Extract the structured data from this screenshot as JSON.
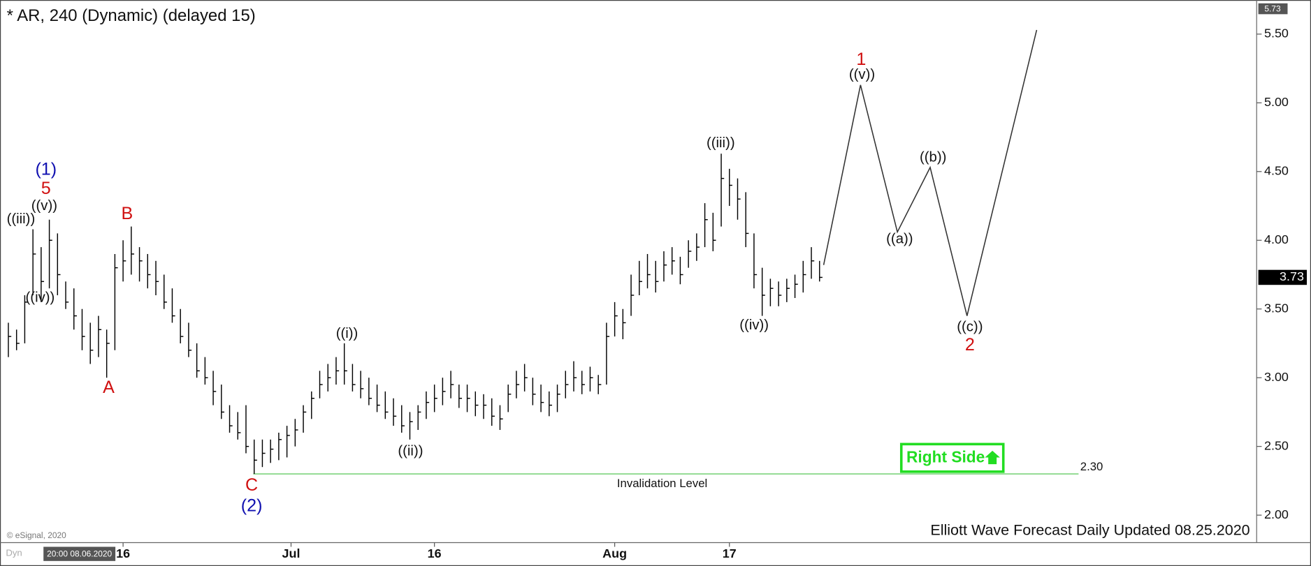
{
  "chart_data": {
    "type": "hlc",
    "title": "* AR, 240 (Dynamic) (delayed 15)",
    "copyright": "© eSignal, 2020",
    "mode_label": "Dyn",
    "cursor_date": "20:00 08.06.2020",
    "footer": "Elliott Wave Forecast Daily Updated 08.25.2020",
    "badge": "Right Side",
    "bar_color": "#000000",
    "ylim": [
      1.8,
      5.73
    ],
    "yticks": [
      {
        "value": 2,
        "label": "2.00"
      },
      {
        "value": 2.5,
        "label": "2.50"
      },
      {
        "value": 3,
        "label": "3.00"
      },
      {
        "value": 3.5,
        "label": "3.50"
      },
      {
        "value": 4,
        "label": "4.00"
      },
      {
        "value": 4.5,
        "label": "4.50"
      },
      {
        "value": 5,
        "label": "5.00"
      },
      {
        "value": 5.5,
        "label": "5.50"
      }
    ],
    "xticks": [
      {
        "value": 14,
        "label": "16"
      },
      {
        "value": 34.5,
        "label": "Jul"
      },
      {
        "value": 52,
        "label": "16"
      },
      {
        "value": 74,
        "label": "Aug"
      },
      {
        "value": 88,
        "label": "17"
      }
    ],
    "high": [
      3.4,
      3.35,
      3.6,
      4.08,
      3.95,
      4.15,
      4.05,
      3.7,
      3.65,
      3.5,
      3.4,
      3.45,
      3.35,
      3.9,
      4.0,
      4.1,
      3.95,
      3.9,
      3.85,
      3.75,
      3.65,
      3.5,
      3.4,
      3.25,
      3.15,
      3.05,
      2.95,
      2.8,
      2.75,
      2.8,
      2.55,
      2.55,
      2.55,
      2.6,
      2.65,
      2.7,
      2.8,
      2.9,
      3.05,
      3.1,
      3.15,
      3.25,
      3.1,
      3.05,
      3.0,
      2.95,
      2.9,
      2.85,
      2.8,
      2.75,
      2.8,
      2.9,
      2.95,
      3.0,
      3.05,
      2.95,
      2.95,
      2.9,
      2.88,
      2.85,
      2.8,
      2.95,
      3.05,
      3.1,
      3.0,
      2.95,
      2.9,
      2.95,
      3.05,
      3.12,
      3.05,
      3.08,
      3.02,
      3.4,
      3.55,
      3.5,
      3.75,
      3.85,
      3.9,
      3.85,
      3.92,
      3.95,
      3.88,
      4.0,
      4.05,
      4.27,
      4.2,
      4.63,
      4.52,
      4.45,
      4.35,
      4.05,
      3.8,
      3.72,
      3.7,
      3.72,
      3.75,
      3.85,
      3.95,
      3.85
    ],
    "low": [
      3.15,
      3.2,
      3.25,
      3.6,
      3.55,
      3.65,
      3.6,
      3.5,
      3.35,
      3.2,
      3.1,
      3.15,
      3.0,
      3.2,
      3.7,
      3.75,
      3.7,
      3.65,
      3.6,
      3.5,
      3.4,
      3.25,
      3.15,
      3.0,
      2.95,
      2.8,
      2.7,
      2.6,
      2.55,
      2.45,
      2.3,
      2.35,
      2.38,
      2.4,
      2.42,
      2.5,
      2.6,
      2.7,
      2.85,
      2.9,
      2.95,
      2.95,
      2.9,
      2.85,
      2.8,
      2.75,
      2.7,
      2.65,
      2.6,
      2.55,
      2.62,
      2.7,
      2.75,
      2.8,
      2.85,
      2.78,
      2.75,
      2.72,
      2.7,
      2.65,
      2.62,
      2.75,
      2.85,
      2.9,
      2.8,
      2.75,
      2.72,
      2.75,
      2.85,
      2.9,
      2.88,
      2.9,
      2.88,
      2.95,
      3.3,
      3.28,
      3.45,
      3.6,
      3.65,
      3.62,
      3.7,
      3.75,
      3.68,
      3.8,
      3.85,
      3.95,
      3.92,
      4.1,
      4.25,
      4.15,
      3.95,
      3.65,
      3.45,
      3.52,
      3.52,
      3.55,
      3.58,
      3.62,
      3.72,
      3.7
    ],
    "close": [
      3.3,
      3.25,
      3.55,
      3.9,
      3.7,
      4.0,
      3.75,
      3.55,
      3.45,
      3.3,
      3.2,
      3.35,
      3.25,
      3.8,
      3.85,
      3.9,
      3.85,
      3.75,
      3.7,
      3.55,
      3.45,
      3.3,
      3.2,
      3.05,
      3.0,
      2.9,
      2.75,
      2.65,
      2.6,
      2.5,
      2.4,
      2.45,
      2.48,
      2.55,
      2.58,
      2.62,
      2.75,
      2.85,
      2.95,
      3.0,
      3.05,
      3.05,
      2.95,
      2.92,
      2.85,
      2.8,
      2.75,
      2.72,
      2.65,
      2.68,
      2.75,
      2.82,
      2.85,
      2.9,
      2.95,
      2.85,
      2.85,
      2.8,
      2.8,
      2.72,
      2.7,
      2.88,
      2.95,
      3.0,
      2.88,
      2.82,
      2.8,
      2.88,
      2.95,
      3.0,
      2.95,
      3.0,
      2.95,
      3.3,
      3.45,
      3.4,
      3.6,
      3.7,
      3.75,
      3.7,
      3.82,
      3.85,
      3.75,
      3.92,
      3.95,
      4.15,
      4.0,
      4.45,
      4.4,
      4.3,
      4.05,
      3.75,
      3.6,
      3.65,
      3.6,
      3.65,
      3.68,
      3.75,
      3.85,
      3.73
    ],
    "projection": {
      "x": [
        99.5,
        104,
        108.5,
        112.5,
        117,
        125.5
      ],
      "values": [
        3.82,
        5.13,
        4.06,
        4.53,
        3.45,
        5.53
      ],
      "color": "#333333"
    },
    "invalidation": {
      "text": "Invalidation Level",
      "value": 2.3,
      "value_label": "2.30",
      "color": "#66cc66"
    },
    "annotations": [
      {
        "text": "(1)",
        "color": "#1010b0"
      },
      {
        "text": "5",
        "color": "#d01010"
      },
      {
        "text": "((v))",
        "color": "#111111"
      },
      {
        "text": "((iii))",
        "color": "#111111"
      },
      {
        "text": "((iv))",
        "color": "#111111"
      },
      {
        "text": "B",
        "color": "#d01010"
      },
      {
        "text": "A",
        "color": "#d01010"
      },
      {
        "text": "C",
        "color": "#d01010"
      },
      {
        "text": "(2)",
        "color": "#1010b0"
      },
      {
        "text": "((i))",
        "color": "#111111"
      },
      {
        "text": "((ii))",
        "color": "#111111"
      },
      {
        "text": "((iii))",
        "color": "#111111"
      },
      {
        "text": "((iv))",
        "color": "#111111"
      },
      {
        "text": "1",
        "color": "#d01010"
      },
      {
        "text": "((v))",
        "color": "#111111"
      },
      {
        "text": "((a))",
        "color": "#111111"
      },
      {
        "text": "((b))",
        "color": "#111111"
      },
      {
        "text": "((c))",
        "color": "#111111"
      },
      {
        "text": "2",
        "color": "#d01010"
      }
    ]
  }
}
